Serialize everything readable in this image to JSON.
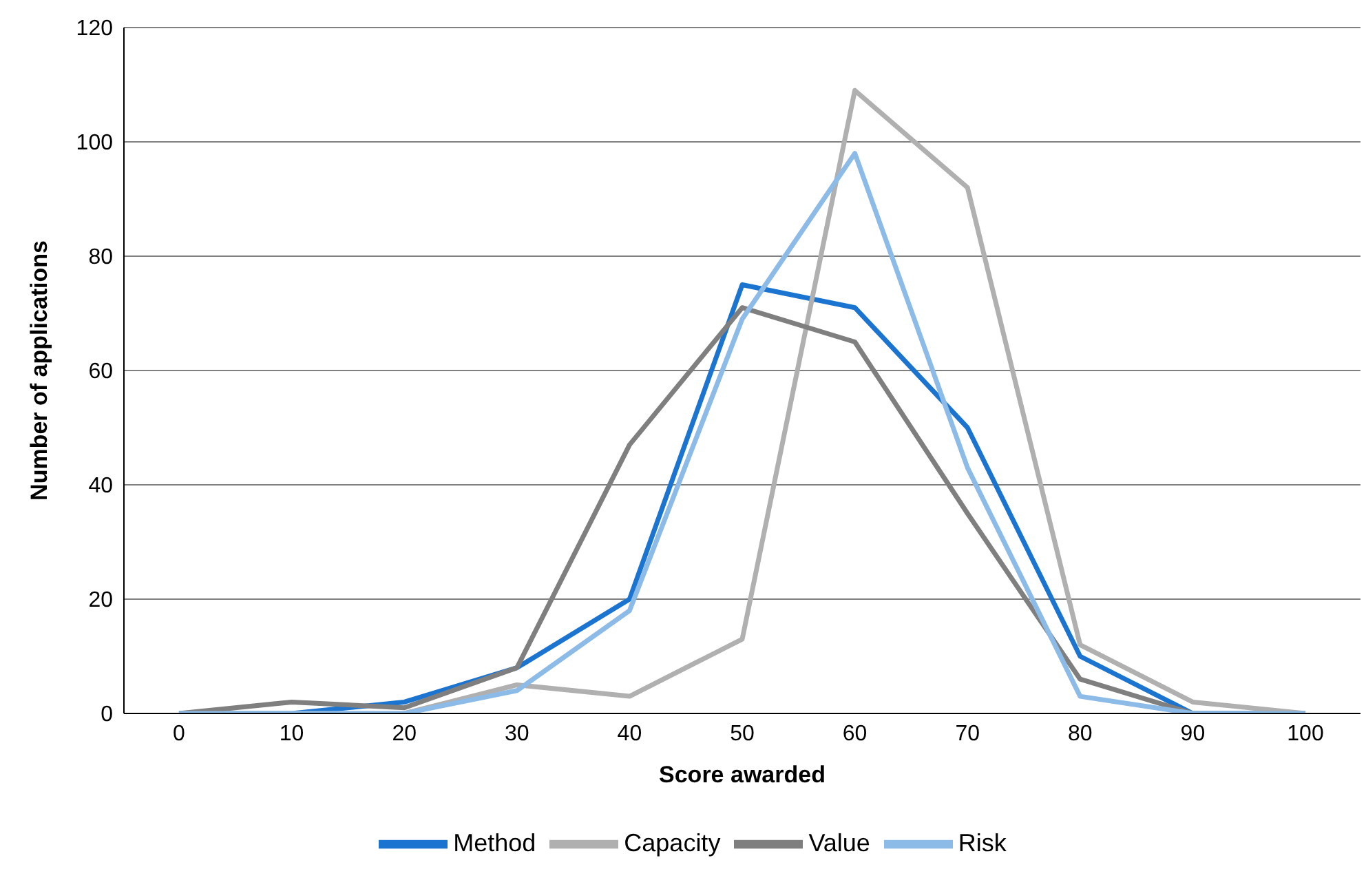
{
  "chart_data": {
    "type": "line",
    "xlabel": "Score awarded",
    "ylabel": "Number of applications",
    "categories": [
      "0",
      "10",
      "20",
      "30",
      "40",
      "50",
      "60",
      "70",
      "80",
      "90",
      "100"
    ],
    "series": [
      {
        "name": "Method",
        "color": "#1b75d0",
        "values": [
          0,
          0,
          2,
          8,
          20,
          75,
          71,
          50,
          10,
          0,
          0
        ]
      },
      {
        "name": "Capacity",
        "color": "#b0b0b0",
        "values": [
          0,
          0,
          0,
          5,
          3,
          13,
          109,
          92,
          12,
          2,
          0
        ]
      },
      {
        "name": "Value",
        "color": "#7f7f7f",
        "values": [
          0,
          2,
          1,
          8,
          47,
          71,
          65,
          35,
          6,
          0,
          0
        ]
      },
      {
        "name": "Risk",
        "color": "#8dbbe8",
        "values": [
          0,
          0,
          0,
          4,
          18,
          69,
          98,
          43,
          3,
          0,
          0
        ]
      }
    ],
    "ylim": [
      0,
      120
    ],
    "yticks": [
      0,
      20,
      40,
      60,
      80,
      100,
      120
    ],
    "grid": "y",
    "legend": "bottom",
    "marker": "none",
    "line_style": "solid"
  }
}
